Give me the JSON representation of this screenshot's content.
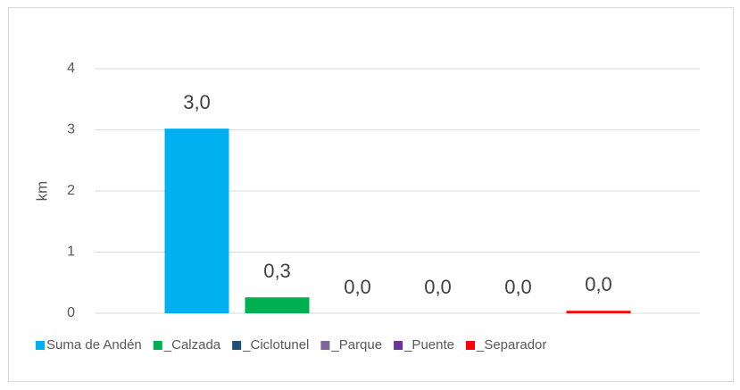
{
  "chart_data": {
    "type": "bar",
    "ylabel": "km",
    "categories": [
      null
    ],
    "series": [
      {
        "name": "Suma de Andén",
        "color": "#00b0f0",
        "values": [
          3.02
        ],
        "value_labels": [
          "3,0"
        ]
      },
      {
        "name": "_Calzada",
        "color": "#00b050",
        "values": [
          0.26
        ],
        "value_labels": [
          "0,3"
        ]
      },
      {
        "name": "_Ciclotunel",
        "color": "#1f4e79",
        "values": [
          0
        ],
        "value_labels": [
          "0,0"
        ]
      },
      {
        "name": "_Parque",
        "color": "#8064a2",
        "values": [
          0
        ],
        "value_labels": [
          "0,0"
        ]
      },
      {
        "name": "_Puente",
        "color": "#7030a0",
        "values": [
          0
        ],
        "value_labels": [
          "0,0"
        ]
      },
      {
        "name": "_Separador",
        "color": "#ff0000",
        "values": [
          0.04
        ],
        "value_labels": [
          "0,0"
        ]
      }
    ],
    "ylim": [
      0,
      4
    ],
    "yticks": [
      0,
      1,
      2,
      3,
      4
    ],
    "grid": true,
    "legend": "bottom"
  }
}
